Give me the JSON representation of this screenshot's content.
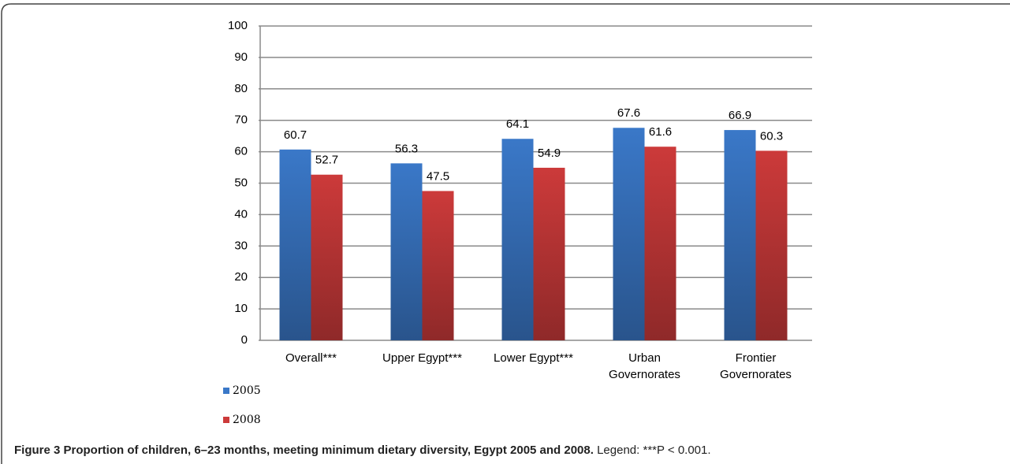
{
  "chart_data": {
    "type": "bar",
    "caption_title": "Figure 3 Proportion of children, 6–23 months, meeting minimum dietary diversity, Egypt 2005 and 2008.",
    "caption_note": "Legend: ***P < 0.001.",
    "categories": [
      "Overall***",
      "Upper Egypt***",
      "Lower Egypt***",
      "Urban Governorates",
      "Frontier Governorates"
    ],
    "series": [
      {
        "name": "2005",
        "color": "#3a78c8",
        "values": [
          60.7,
          56.3,
          64.1,
          67.6,
          66.9
        ]
      },
      {
        "name": "2008",
        "color": "#cc3a3a",
        "values": [
          52.7,
          47.5,
          54.9,
          61.6,
          60.3
        ]
      }
    ],
    "ylim": [
      0,
      100
    ],
    "yticks": [
      0,
      10,
      20,
      30,
      40,
      50,
      60,
      70,
      80,
      90,
      100
    ],
    "grid": true,
    "legend": "bottom-left"
  }
}
